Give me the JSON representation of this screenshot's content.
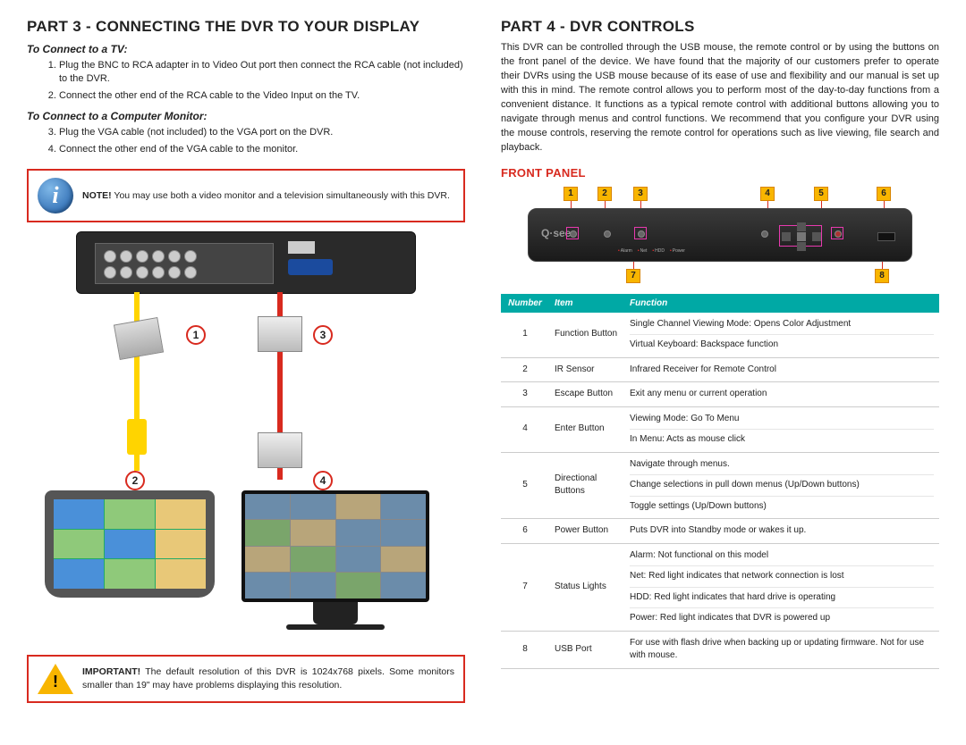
{
  "left": {
    "title": "PART 3 - CONNECTING THE DVR TO YOUR DISPLAY",
    "tv_heading": "To Connect to a TV:",
    "tv_steps": [
      "Plug the BNC to RCA adapter in to Video Out port then connect the RCA cable (not included) to the DVR.",
      "Connect the other end of the RCA cable to the Video Input on the TV."
    ],
    "mon_heading": "To Connect to a Computer Monitor:",
    "mon_steps": [
      "Plug the VGA cable (not included) to the VGA port on the DVR.",
      "Connect the other end of the VGA cable to the monitor."
    ],
    "note_label": "NOTE!",
    "note_text": "You may use both a video monitor and a television simultaneously with this DVR.",
    "callouts": {
      "c1": "1",
      "c2": "2",
      "c3": "3",
      "c4": "4"
    },
    "imp_label": "IMPORTANT!",
    "imp_text": "The default resolution of this DVR is 1024x768 pixels. Some monitors smaller than 19\" may have problems displaying this resolution."
  },
  "right": {
    "title": "PART 4 - DVR CONTROLS",
    "intro": "This DVR can be controlled through the USB mouse, the remote control or by using the buttons on the front panel of the device. We have found that the majority of our customers prefer to operate their DVRs using the USB mouse because of its ease of use and flexibility and our manual is set up with this in mind. The remote control allows you to perform most of the day-to-day functions from a convenient distance. It functions as a typical remote control with additional buttons allowing you to navigate through menus and control functions.  We recommend that you configure your DVR using the mouse controls, reserving the remote control for operations such as live viewing, file search and playback.",
    "front_panel_label": "FRONT PANEL",
    "logo": "Q·see",
    "fp_nums": {
      "n1": "1",
      "n2": "2",
      "n3": "3",
      "n4": "4",
      "n5": "5",
      "n6": "6",
      "n7": "7",
      "n8": "8"
    },
    "leds": [
      "Alarm",
      "Net",
      "HDD",
      "Power"
    ],
    "table": {
      "headers": {
        "number": "Number",
        "item": "Item",
        "function": "Function"
      },
      "rows": [
        {
          "num": "1",
          "item": "Function Button",
          "fn": [
            "Single Channel Viewing Mode: Opens Color Adjustment",
            "Virtual Keyboard: Backspace function"
          ]
        },
        {
          "num": "2",
          "item": "IR Sensor",
          "fn": [
            "Infrared Receiver for Remote Control"
          ]
        },
        {
          "num": "3",
          "item": "Escape Button",
          "fn": [
            "Exit any menu or current operation"
          ]
        },
        {
          "num": "4",
          "item": "Enter Button",
          "fn": [
            "Viewing Mode: Go To Menu",
            "In Menu: Acts as mouse click"
          ]
        },
        {
          "num": "5",
          "item": "Directional Buttons",
          "fn": [
            "Navigate through menus.",
            "Change selections in pull down menus (Up/Down buttons)",
            "Toggle settings (Up/Down buttons)"
          ]
        },
        {
          "num": "6",
          "item": "Power Button",
          "fn": [
            "Puts DVR into Standby mode or wakes it up."
          ]
        },
        {
          "num": "7",
          "item": "Status Lights",
          "fn": [
            "Alarm: Not functional on this model",
            "Net: Red light indicates that network connection is lost",
            "HDD: Red light indicates that hard drive is operating",
            "Power: Red light indicates that DVR is powered up"
          ]
        },
        {
          "num": "8",
          "item": "USB Port",
          "fn": [
            "For use with flash drive when backing up or updating firmware. Not for use with mouse."
          ]
        }
      ]
    }
  },
  "colors": {
    "accent_red": "#d82a1f",
    "callout_bg": "#f8b500",
    "table_header": "#00a9a5",
    "pink_box": "#e83aaf"
  }
}
